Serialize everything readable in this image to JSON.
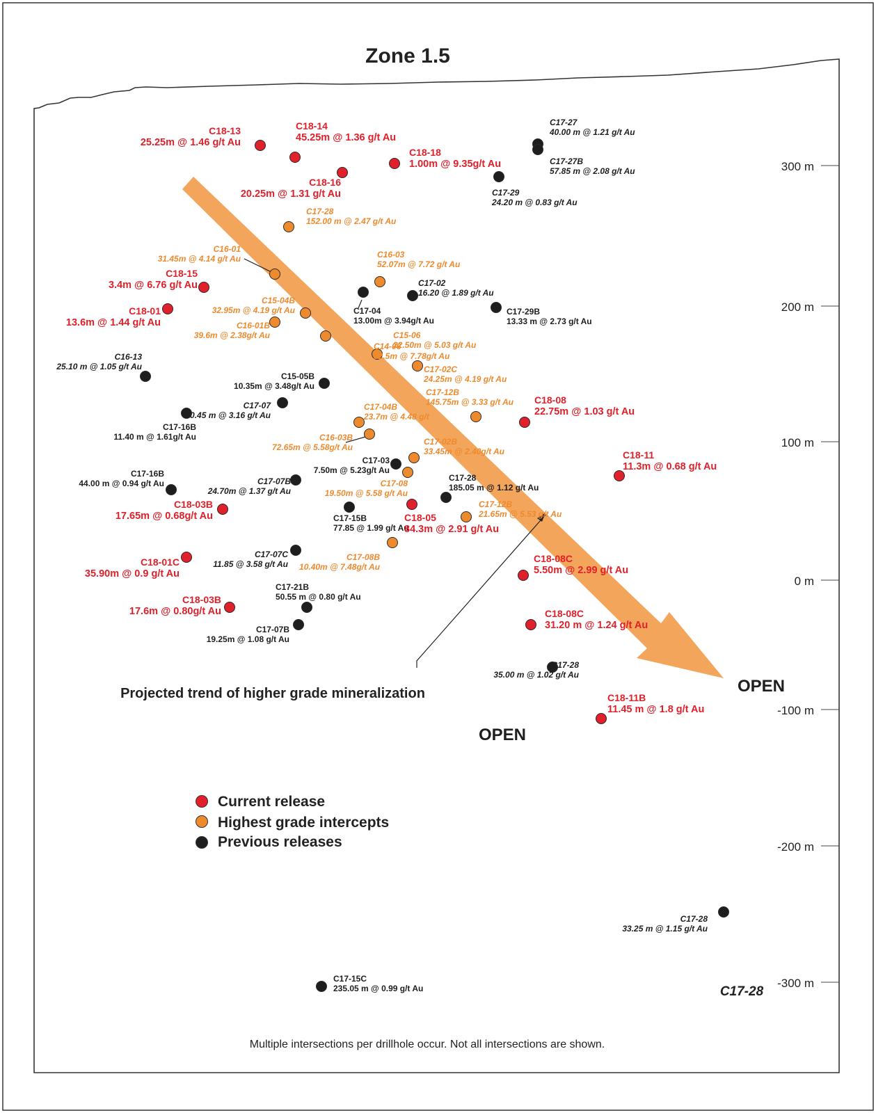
{
  "title": "Zone 1.5",
  "y_axis": {
    "unit": "m",
    "ticks": [
      "300 m",
      "200 m",
      "100 m",
      "0 m",
      "-100 m",
      "-200 m",
      "-300 m"
    ]
  },
  "colors": {
    "current_release": "#e0202a",
    "highest_grade": "#ee8a2e",
    "previous_release": "#1e1e1e",
    "trend_arrow": "#f3a55b"
  },
  "legend": [
    {
      "category": "current",
      "label": "Current release"
    },
    {
      "category": "highest",
      "label": "Highest grade intercepts"
    },
    {
      "category": "previous",
      "label": "Previous releases"
    }
  ],
  "trend_label": "Projected trend of higher grade mineralization",
  "open_labels": [
    "OPEN",
    "OPEN"
  ],
  "corner_label": "C17-28",
  "footnote": "Multiple intersections per drillhole occur.  Not all intersections are shown.",
  "intercepts": [
    {
      "id": "C18-13",
      "text": "25.25m @ 1.46 g/t Au",
      "category": "current"
    },
    {
      "id": "C18-14",
      "text": "45.25m @ 1.36 g/t Au",
      "category": "current"
    },
    {
      "id": "C18-18",
      "text": "1.00m @ 9.35g/t Au",
      "category": "current"
    },
    {
      "id": "C18-16",
      "text": "20.25m @ 1.31 g/t Au",
      "category": "current"
    },
    {
      "id": "C17-27",
      "text": "40.00 m @ 1.21 g/t Au",
      "category": "previous"
    },
    {
      "id": "C17-27B",
      "text": "57.85 m @ 2.08 g/t Au",
      "category": "previous"
    },
    {
      "id": "C17-29",
      "text": "24.20 m @ 0.83 g/t Au",
      "category": "previous"
    },
    {
      "id": "C17-28",
      "text": "152.00 m @ 2.47 g/t Au",
      "category": "highest"
    },
    {
      "id": "C16-01",
      "text": "31.45m @ 4.14 g/t Au",
      "category": "highest"
    },
    {
      "id": "C16-03",
      "text": "52.07m @ 7.72 g/t Au",
      "category": "highest"
    },
    {
      "id": "C18-15",
      "text": "3.4m @ 6.76 g/t Au",
      "category": "current"
    },
    {
      "id": "C17-02",
      "text": "16.20 @ 1.89 g/t Au",
      "category": "previous"
    },
    {
      "id": "C17-04",
      "text": "13.00m @ 3.94g/t Au",
      "category": "previous"
    },
    {
      "id": "C15-04B",
      "text": "32.95m @ 4.19 g/t Au",
      "category": "highest"
    },
    {
      "id": "C17-29B",
      "text": "13.33 m @ 2.73 g/t Au",
      "category": "previous"
    },
    {
      "id": "C18-01",
      "text": "13.6m @ 1.44 g/t Au",
      "category": "current"
    },
    {
      "id": "C16-01B",
      "text": "39.6m @ 2.38g/t Au",
      "category": "highest"
    },
    {
      "id": "C15-06",
      "text": "22.50m @ 5.03 g/t Au",
      "category": "highest"
    },
    {
      "id": "C14-06",
      "text": "52.5m @ 7.78g/t Au",
      "category": "highest"
    },
    {
      "id": "C16-13",
      "text": "25.10 m @ 1.05 g/t Au",
      "category": "previous"
    },
    {
      "id": "C17-02C",
      "text": "24.25m @ 4.19 g/t Au",
      "category": "highest"
    },
    {
      "id": "C15-05B",
      "text": "10.35m @ 3.48g/t Au",
      "category": "previous"
    },
    {
      "id": "C17-12B",
      "text": "145.75m @ 3.33 g/t Au",
      "category": "highest"
    },
    {
      "id": "C17-07",
      "text": "10.45 m @ 3.16 g/t Au",
      "category": "previous"
    },
    {
      "id": "C17-04B",
      "text": "23.7m @ 4.48 g/t",
      "category": "highest"
    },
    {
      "id": "C18-08",
      "text": "22.75m @ 1.03 g/t Au",
      "category": "current"
    },
    {
      "id": "C17-16B",
      "text": "11.40 m @ 1.61g/t Au",
      "category": "previous"
    },
    {
      "id": "C16-03B",
      "text": "72.65m @ 5.58g/t Au",
      "category": "highest"
    },
    {
      "id": "C17-02B",
      "text": "33.45m @ 2.40g/t Au",
      "category": "highest"
    },
    {
      "id": "C18-11",
      "text": "11.3m @ 0.68 g/t Au",
      "category": "current"
    },
    {
      "id": "C17-03",
      "text": "7.50m @ 5.23g/t Au",
      "category": "previous"
    },
    {
      "id": "C17-16B",
      "text": "44.00 m @ 0.94 g/t Au",
      "category": "previous"
    },
    {
      "id": "C17-07B",
      "text": "24.70m @ 1.37 g/t Au",
      "category": "previous"
    },
    {
      "id": "C17-08",
      "text": "19.50m @ 5.58 g/t Au",
      "category": "highest"
    },
    {
      "id": "C17-28",
      "text": "185.05 m @ 1.12 g/t Au",
      "category": "previous"
    },
    {
      "id": "C18-03B",
      "text": "17.65m @  0.68g/t Au",
      "category": "current"
    },
    {
      "id": "C17-15B",
      "text": "77.85 @ 1.99 g/t Au",
      "category": "previous"
    },
    {
      "id": "C18-05",
      "text": "84.3m @ 2.91 g/t Au",
      "category": "current"
    },
    {
      "id": "C17-12B",
      "text": "21.65m @ 5.53 g/t Au",
      "category": "highest"
    },
    {
      "id": "C17-08B",
      "text": "10.40m @ 7.48g/t Au",
      "category": "highest"
    },
    {
      "id": "C17-07C",
      "text": "11.85 @ 3.58 g/t Au",
      "category": "previous"
    },
    {
      "id": "C18-01C",
      "text": "35.90m @ 0.9 g/t Au",
      "category": "current"
    },
    {
      "id": "C18-08C",
      "text": "5.50m @ 2.99 g/t Au",
      "category": "current"
    },
    {
      "id": "C17-21B",
      "text": "50.55 m @ 0.80 g/t Au",
      "category": "previous"
    },
    {
      "id": "C18-03B",
      "text": "17.6m @  0.80g/t Au",
      "category": "current"
    },
    {
      "id": "C18-08C",
      "text": "31.20 m @ 1.24 g/t Au",
      "category": "current"
    },
    {
      "id": "C17-07B",
      "text": "19.25m @ 1.08 g/t Au",
      "category": "previous"
    },
    {
      "id": "C17-28",
      "text": "35.00 m @ 1.02 g/t Au",
      "category": "previous"
    },
    {
      "id": "C18-11B",
      "text": "11.45 m @ 1.8 g/t Au",
      "category": "current"
    },
    {
      "id": "C17-28",
      "text": "33.25 m @ 1.15 g/t Au",
      "category": "previous"
    },
    {
      "id": "C17-15C",
      "text": "235.05 m @ 0.99 g/t Au",
      "category": "previous"
    }
  ]
}
